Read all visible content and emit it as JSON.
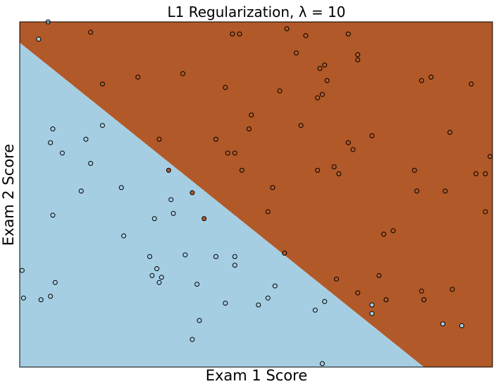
{
  "chart_data": {
    "type": "scatter",
    "title": "L1 Regularization, λ = 10",
    "xlabel": "Exam 1 Score",
    "ylabel": "Exam 2 Score",
    "xlim": [
      0,
      100
    ],
    "ylim": [
      0,
      100
    ],
    "grid": false,
    "ticks": "none",
    "decision_boundary": {
      "points": [
        [
          0,
          94
        ],
        [
          85.5,
          0
        ]
      ],
      "regions": [
        {
          "class": 0,
          "side": "below-left",
          "color": "#a6cee3"
        },
        {
          "class": 1,
          "side": "above-right",
          "color": "#b15928"
        }
      ]
    },
    "class_colors": {
      "0": "#a6cee3",
      "1": "#b15928"
    },
    "series": [
      {
        "class": 0,
        "points": [
          [
            6,
            100
          ],
          [
            4,
            95
          ],
          [
            7,
            69
          ],
          [
            6.5,
            65
          ],
          [
            14,
            66
          ],
          [
            9,
            62
          ],
          [
            17.5,
            70
          ],
          [
            15,
            59
          ],
          [
            13,
            51
          ],
          [
            21.5,
            52
          ],
          [
            7,
            44
          ],
          [
            22,
            38
          ],
          [
            32,
            48.5
          ],
          [
            32.5,
            44.5
          ],
          [
            28.5,
            43
          ],
          [
            0.5,
            28
          ],
          [
            7.5,
            24.5
          ],
          [
            0.8,
            20
          ],
          [
            4.5,
            19.5
          ],
          [
            6.5,
            20.5
          ],
          [
            28,
            26.5
          ],
          [
            29,
            28.5
          ],
          [
            30,
            26
          ],
          [
            29.5,
            24.5
          ],
          [
            27.5,
            32
          ],
          [
            35,
            32.5
          ],
          [
            41.5,
            32
          ],
          [
            45.5,
            29.5
          ],
          [
            45.5,
            32
          ],
          [
            54,
            23.5
          ],
          [
            43.5,
            18.5
          ],
          [
            52.5,
            20
          ],
          [
            50.5,
            18
          ],
          [
            37.5,
            24
          ],
          [
            38,
            13.5
          ],
          [
            36.5,
            8
          ],
          [
            64.5,
            19
          ],
          [
            74.5,
            18
          ],
          [
            62.5,
            16.5
          ],
          [
            74.5,
            15.5
          ],
          [
            89.5,
            12.5
          ],
          [
            93.5,
            12
          ],
          [
            64,
            1
          ]
        ]
      },
      {
        "class": 1,
        "points": [
          [
            15,
            97
          ],
          [
            45,
            96.5
          ],
          [
            46.5,
            96.5
          ],
          [
            56.5,
            98
          ],
          [
            60.5,
            96
          ],
          [
            69.5,
            96.5
          ],
          [
            58.5,
            91
          ],
          [
            71.5,
            90.5
          ],
          [
            71.5,
            89
          ],
          [
            63.5,
            86.5
          ],
          [
            64.5,
            87.5
          ],
          [
            17.5,
            82
          ],
          [
            25,
            84
          ],
          [
            34.5,
            85
          ],
          [
            43.5,
            81
          ],
          [
            55,
            80
          ],
          [
            65,
            83
          ],
          [
            64,
            79
          ],
          [
            63,
            78
          ],
          [
            49,
            73
          ],
          [
            48.5,
            69
          ],
          [
            59.5,
            70
          ],
          [
            29.5,
            66
          ],
          [
            41.5,
            66
          ],
          [
            44,
            62
          ],
          [
            45.5,
            62
          ],
          [
            47,
            57
          ],
          [
            69.5,
            65
          ],
          [
            70.5,
            63
          ],
          [
            74.5,
            67
          ],
          [
            63,
            57
          ],
          [
            66.5,
            58
          ],
          [
            67.5,
            56
          ],
          [
            53.5,
            52
          ],
          [
            52.5,
            45
          ],
          [
            85,
            83
          ],
          [
            87,
            84
          ],
          [
            95.5,
            82
          ],
          [
            91,
            68
          ],
          [
            99.5,
            61
          ],
          [
            83.5,
            57
          ],
          [
            96.5,
            56
          ],
          [
            98.5,
            56
          ],
          [
            84,
            51
          ],
          [
            90,
            51
          ],
          [
            98.5,
            45
          ],
          [
            77,
            38.5
          ],
          [
            79,
            39.5
          ],
          [
            56,
            33
          ],
          [
            67,
            25.5
          ],
          [
            76,
            26.5
          ],
          [
            71.5,
            21.5
          ],
          [
            77.5,
            19.5
          ],
          [
            85,
            22
          ],
          [
            91.5,
            22.5
          ],
          [
            85.5,
            19.5
          ],
          [
            31.5,
            57
          ],
          [
            36.5,
            50.5
          ],
          [
            39,
            43
          ]
        ]
      }
    ]
  }
}
